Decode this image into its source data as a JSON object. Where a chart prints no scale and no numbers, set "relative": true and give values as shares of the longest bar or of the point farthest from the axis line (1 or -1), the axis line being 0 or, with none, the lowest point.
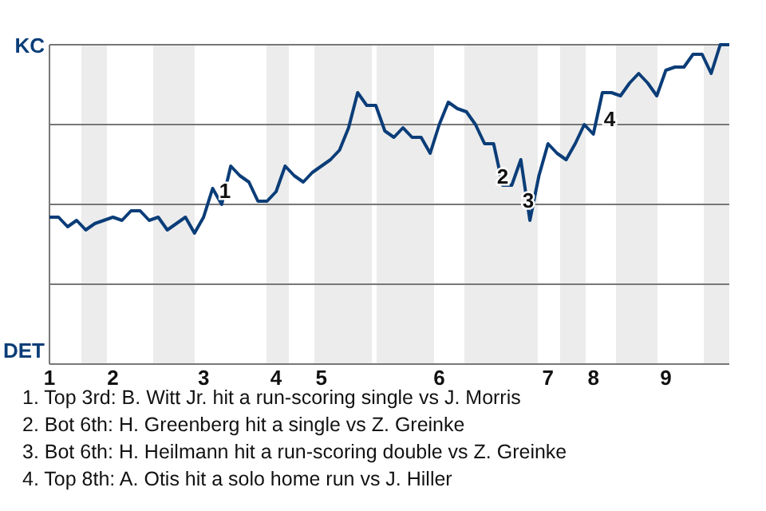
{
  "chart_data": {
    "type": "line",
    "relative": true,
    "grid": "y",
    "marker": "none",
    "line_style": "solid",
    "categories": [
      "1",
      null,
      null,
      null,
      null,
      null,
      null,
      "2",
      null,
      null,
      null,
      null,
      null,
      null,
      null,
      null,
      null,
      "3",
      null,
      null,
      null,
      null,
      null,
      null,
      null,
      "4",
      null,
      null,
      null,
      null,
      "5",
      null,
      null,
      null,
      null,
      null,
      null,
      null,
      null,
      null,
      null,
      null,
      null,
      "6",
      null,
      null,
      null,
      null,
      null,
      null,
      null,
      null,
      null,
      null,
      null,
      "7",
      null,
      null,
      null,
      null,
      "8",
      null,
      null,
      null,
      null,
      null,
      null,
      null,
      "9",
      null,
      null,
      null,
      null,
      null,
      null,
      null
    ],
    "series": [
      {
        "color": "#0b3d78",
        "values": [
          0.46,
          0.46,
          0.43,
          0.45,
          0.42,
          0.44,
          0.45,
          0.46,
          0.45,
          0.48,
          0.48,
          0.45,
          0.46,
          0.42,
          0.44,
          0.46,
          0.41,
          0.46,
          0.55,
          0.5,
          0.62,
          0.59,
          0.57,
          0.51,
          0.51,
          0.54,
          0.62,
          0.59,
          0.57,
          0.6,
          0.62,
          0.64,
          0.67,
          0.74,
          0.85,
          0.81,
          0.81,
          0.73,
          0.71,
          0.74,
          0.71,
          0.71,
          0.66,
          0.75,
          0.82,
          0.8,
          0.79,
          0.75,
          0.69,
          0.69,
          0.56,
          0.56,
          0.64,
          0.45,
          0.59,
          0.69,
          0.66,
          0.64,
          0.69,
          0.75,
          0.72,
          0.85,
          0.85,
          0.84,
          0.88,
          0.91,
          0.88,
          0.84,
          0.92,
          0.93,
          0.93,
          0.97,
          0.97,
          0.91,
          1.0,
          1.0
        ]
      }
    ],
    "annotations": [
      "KC",
      "DET",
      "1",
      "2",
      "3",
      "4",
      "1. Top 3rd: B. Witt Jr. hit a run-scoring single vs J. Morris",
      "2. Bot 6th: H. Greenberg hit a single vs Z. Greinke",
      "3. Bot 6th: H. Heilmann hit a run-scoring double vs Z. Greinke",
      "4. Top 8th: A. Otis hit a solo home run vs J. Hiller"
    ]
  }
}
